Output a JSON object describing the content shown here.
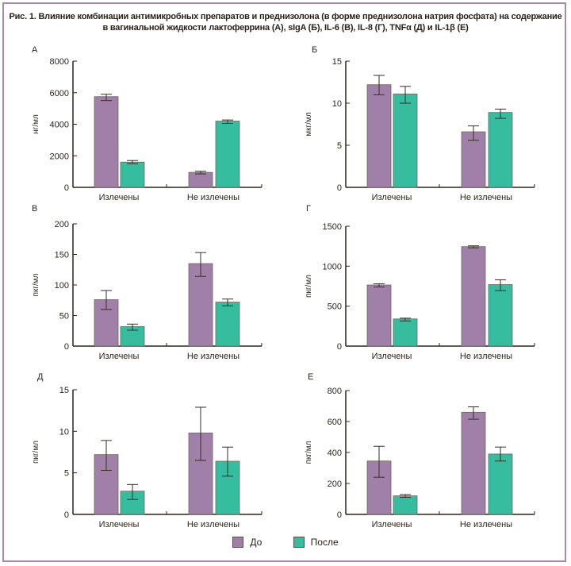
{
  "figure": {
    "title_line1": "Рис. 1. Влияние комбинации антимикробных препаратов и преднизолона (в форме преднизолона натрия фосфата) на содержание",
    "title_line2": "в вагинальной жидкости лактоферрина (А), sIgA (Б),  IL-6 (В), IL-8 (Г), TNFα (Д) и IL-1β (Е)",
    "frame_color": "#a889aa"
  },
  "legend": {
    "items": [
      {
        "label": "До",
        "color": "#a07fa8"
      },
      {
        "label": "После",
        "color": "#36bda0"
      }
    ],
    "placement": "bottom-center"
  },
  "chart_data": [
    {
      "panel": "А",
      "type": "bar",
      "title": "",
      "xlabel": "",
      "ylabel": "нг/мл",
      "categories": [
        "Излечены",
        "Не излечены"
      ],
      "ylim": [
        0,
        8000
      ],
      "yticks": [
        0,
        2000,
        4000,
        6000,
        8000
      ],
      "grid": false,
      "series": [
        {
          "name": "До",
          "values": [
            5750,
            950
          ],
          "err_low": [
            5500,
            850
          ],
          "err_high": [
            5900,
            1020
          ]
        },
        {
          "name": "После",
          "values": [
            1600,
            4200
          ],
          "err_low": [
            1500,
            4050
          ],
          "err_high": [
            1700,
            4270
          ]
        }
      ]
    },
    {
      "panel": "Б",
      "type": "bar",
      "title": "",
      "xlabel": "",
      "ylabel": "мкг/мл",
      "categories": [
        "Излечены",
        "Не излечены"
      ],
      "ylim": [
        0,
        15
      ],
      "yticks": [
        0,
        5,
        10,
        15
      ],
      "grid": false,
      "series": [
        {
          "name": "До",
          "values": [
            12.2,
            6.6
          ],
          "err_low": [
            11.0,
            5.6
          ],
          "err_high": [
            13.3,
            7.3
          ]
        },
        {
          "name": "После",
          "values": [
            11.1,
            8.9
          ],
          "err_low": [
            10.0,
            8.2
          ],
          "err_high": [
            12.0,
            9.3
          ]
        }
      ]
    },
    {
      "panel": "В",
      "type": "bar",
      "title": "",
      "xlabel": "",
      "ylabel": "пкг/мл",
      "categories": [
        "Излечены",
        "Не излечены"
      ],
      "ylim": [
        0,
        200
      ],
      "yticks": [
        0,
        50,
        100,
        150,
        200
      ],
      "grid": false,
      "series": [
        {
          "name": "До",
          "values": [
            76,
            135
          ],
          "err_low": [
            60,
            114
          ],
          "err_high": [
            91,
            153
          ]
        },
        {
          "name": "После",
          "values": [
            32,
            72
          ],
          "err_low": [
            26,
            66
          ],
          "err_high": [
            36,
            77
          ]
        }
      ]
    },
    {
      "panel": "Г",
      "type": "bar",
      "title": "",
      "xlabel": "",
      "ylabel": "пкг/мл",
      "categories": [
        "Излечены",
        "Не излечены"
      ],
      "ylim": [
        0,
        1500
      ],
      "yticks": [
        0,
        500,
        1000,
        1500
      ],
      "grid": false,
      "series": [
        {
          "name": "До",
          "values": [
            765,
            1245
          ],
          "err_low": [
            740,
            1230
          ],
          "err_high": [
            780,
            1255
          ]
        },
        {
          "name": "После",
          "values": [
            340,
            770
          ],
          "err_low": [
            315,
            695
          ],
          "err_high": [
            350,
            830
          ]
        }
      ]
    },
    {
      "panel": "Д",
      "type": "bar",
      "title": "",
      "xlabel": "",
      "ylabel": "пкг/мл",
      "categories": [
        "Излечены",
        "Не излечены"
      ],
      "ylim": [
        0,
        15
      ],
      "yticks": [
        0,
        5,
        10,
        15
      ],
      "grid": false,
      "series": [
        {
          "name": "До",
          "values": [
            7.2,
            9.8
          ],
          "err_low": [
            5.3,
            6.5
          ],
          "err_high": [
            8.9,
            12.9
          ]
        },
        {
          "name": "После",
          "values": [
            2.8,
            6.4
          ],
          "err_low": [
            1.8,
            4.6
          ],
          "err_high": [
            3.6,
            8.1
          ]
        }
      ]
    },
    {
      "panel": "Е",
      "type": "bar",
      "title": "",
      "xlabel": "",
      "ylabel": "пкг/мл",
      "categories": [
        "Излечены",
        "Не излечены"
      ],
      "ylim": [
        0,
        800
      ],
      "yticks": [
        0,
        200,
        400,
        600,
        800
      ],
      "grid": false,
      "series": [
        {
          "name": "До",
          "values": [
            345,
            660
          ],
          "err_low": [
            240,
            615
          ],
          "err_high": [
            440,
            695
          ]
        },
        {
          "name": "После",
          "values": [
            120,
            390
          ],
          "err_low": [
            110,
            345
          ],
          "err_high": [
            128,
            435
          ]
        }
      ]
    }
  ]
}
